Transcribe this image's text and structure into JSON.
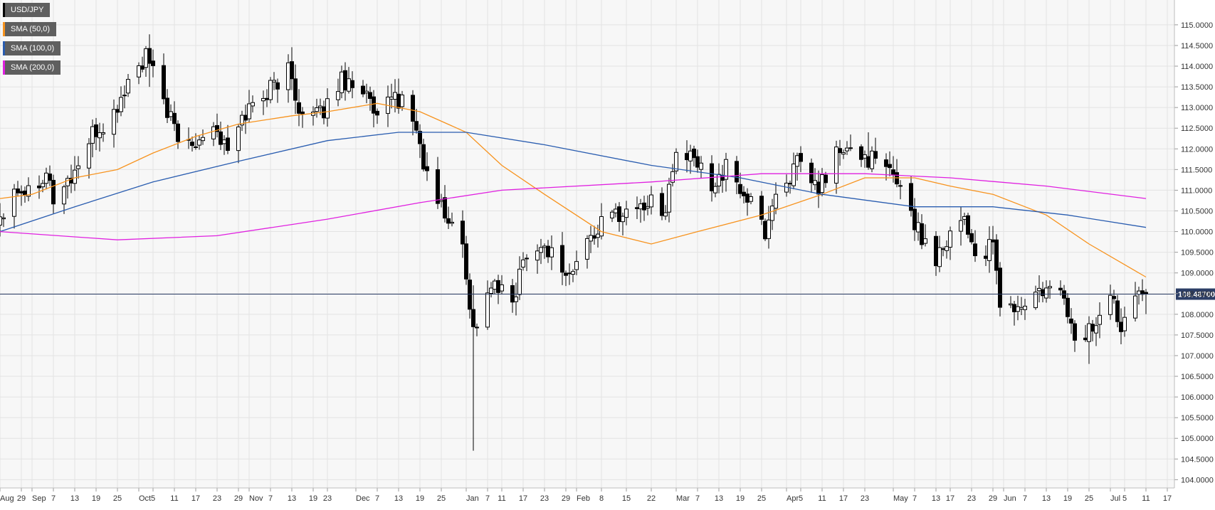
{
  "chart_data": {
    "type": "candlestick",
    "symbol": "USD/JPY",
    "ylim": [
      103.8,
      115.6
    ],
    "y_ticks": [
      "104.0000",
      "104.5000",
      "105.0000",
      "105.5000",
      "106.0000",
      "106.5000",
      "107.0000",
      "107.5000",
      "108.0000",
      "108.5000",
      "109.0000",
      "109.5000",
      "110.0000",
      "110.5000",
      "111.0000",
      "111.5000",
      "112.0000",
      "112.5000",
      "113.0000",
      "113.5000",
      "114.0000",
      "114.5000",
      "115.0000"
    ],
    "x_range": [
      "2018-08-23",
      "2019-07-19"
    ],
    "x_ticks": [
      {
        "date": "2018-08-23",
        "label": "Aug"
      },
      {
        "date": "2018-08-29",
        "label": "29"
      },
      {
        "date": "2018-09-01",
        "label": "Sep"
      },
      {
        "date": "2018-09-07",
        "label": "7"
      },
      {
        "date": "2018-09-13",
        "label": "13"
      },
      {
        "date": "2018-09-19",
        "label": "19"
      },
      {
        "date": "2018-09-25",
        "label": "25"
      },
      {
        "date": "2018-10-01",
        "label": "Oct"
      },
      {
        "date": "2018-10-05",
        "label": "5"
      },
      {
        "date": "2018-10-11",
        "label": "11"
      },
      {
        "date": "2018-10-17",
        "label": "17"
      },
      {
        "date": "2018-10-23",
        "label": "23"
      },
      {
        "date": "2018-10-29",
        "label": "29"
      },
      {
        "date": "2018-11-01",
        "label": "Nov"
      },
      {
        "date": "2018-11-07",
        "label": "7"
      },
      {
        "date": "2018-11-13",
        "label": "13"
      },
      {
        "date": "2018-11-19",
        "label": "19"
      },
      {
        "date": "2018-11-23",
        "label": "23"
      },
      {
        "date": "2018-12-01",
        "label": "Dec"
      },
      {
        "date": "2018-12-07",
        "label": "7"
      },
      {
        "date": "2018-12-13",
        "label": "13"
      },
      {
        "date": "2018-12-19",
        "label": "19"
      },
      {
        "date": "2018-12-25",
        "label": "25"
      },
      {
        "date": "2019-01-01",
        "label": "Jan"
      },
      {
        "date": "2019-01-07",
        "label": "7"
      },
      {
        "date": "2019-01-11",
        "label": "11"
      },
      {
        "date": "2019-01-17",
        "label": "17"
      },
      {
        "date": "2019-01-23",
        "label": "23"
      },
      {
        "date": "2019-01-29",
        "label": "29"
      },
      {
        "date": "2019-02-01",
        "label": "Feb"
      },
      {
        "date": "2019-02-08",
        "label": "8"
      },
      {
        "date": "2019-02-15",
        "label": "15"
      },
      {
        "date": "2019-02-22",
        "label": "22"
      },
      {
        "date": "2019-03-01",
        "label": "Mar"
      },
      {
        "date": "2019-03-07",
        "label": "7"
      },
      {
        "date": "2019-03-13",
        "label": "13"
      },
      {
        "date": "2019-03-19",
        "label": "19"
      },
      {
        "date": "2019-03-25",
        "label": "25"
      },
      {
        "date": "2019-04-01",
        "label": "Apr"
      },
      {
        "date": "2019-04-05",
        "label": "5"
      },
      {
        "date": "2019-04-11",
        "label": "11"
      },
      {
        "date": "2019-04-17",
        "label": "17"
      },
      {
        "date": "2019-04-23",
        "label": "23"
      },
      {
        "date": "2019-05-01",
        "label": "May"
      },
      {
        "date": "2019-05-07",
        "label": "7"
      },
      {
        "date": "2019-05-13",
        "label": "13"
      },
      {
        "date": "2019-05-17",
        "label": "17"
      },
      {
        "date": "2019-05-23",
        "label": "23"
      },
      {
        "date": "2019-05-29",
        "label": "29"
      },
      {
        "date": "2019-06-01",
        "label": "Jun"
      },
      {
        "date": "2019-06-07",
        "label": "7"
      },
      {
        "date": "2019-06-13",
        "label": "13"
      },
      {
        "date": "2019-06-19",
        "label": "19"
      },
      {
        "date": "2019-06-25",
        "label": "25"
      },
      {
        "date": "2019-07-01",
        "label": "Jul"
      },
      {
        "date": "2019-07-05",
        "label": "5"
      },
      {
        "date": "2019-07-11",
        "label": "11"
      },
      {
        "date": "2019-07-17",
        "label": "17"
      }
    ],
    "current_price": {
      "value": 108.487,
      "label": "108.48700"
    },
    "grid": true,
    "legend_position": "top-left",
    "legend": [
      {
        "label": "USD/JPY",
        "color": "#000000"
      },
      {
        "label": "SMA (50,0)",
        "color": "#f7931e"
      },
      {
        "label": "SMA (100,0)",
        "color": "#2a5db0"
      },
      {
        "label": "SMA (200,0)",
        "color": "#e020e0"
      }
    ],
    "price_path": [
      [
        "2018-08-23",
        110.4
      ],
      [
        "2018-08-27",
        111.1
      ],
      [
        "2018-08-31",
        111.0
      ],
      [
        "2018-09-05",
        111.5
      ],
      [
        "2018-09-07",
        110.8
      ],
      [
        "2018-09-12",
        111.3
      ],
      [
        "2018-09-18",
        112.3
      ],
      [
        "2018-09-24",
        112.8
      ],
      [
        "2018-09-28",
        113.6
      ],
      [
        "2018-10-03",
        114.2
      ],
      [
        "2018-10-08",
        113.2
      ],
      [
        "2018-10-12",
        112.2
      ],
      [
        "2018-10-16",
        112.2
      ],
      [
        "2018-10-22",
        112.6
      ],
      [
        "2018-10-26",
        111.9
      ],
      [
        "2018-10-31",
        112.9
      ],
      [
        "2018-11-06",
        113.4
      ],
      [
        "2018-11-12",
        113.9
      ],
      [
        "2018-11-16",
        112.8
      ],
      [
        "2018-11-21",
        112.8
      ],
      [
        "2018-11-27",
        113.7
      ],
      [
        "2018-12-03",
        113.5
      ],
      [
        "2018-12-07",
        112.6
      ],
      [
        "2018-12-12",
        113.3
      ],
      [
        "2018-12-17",
        112.8
      ],
      [
        "2018-12-21",
        111.3
      ],
      [
        "2018-12-26",
        110.4
      ],
      [
        "2018-12-31",
        109.7
      ],
      [
        "2019-01-03",
        107.6
      ],
      [
        "2019-01-08",
        108.7
      ],
      [
        "2019-01-14",
        108.3
      ],
      [
        "2019-01-18",
        109.6
      ],
      [
        "2019-01-24",
        109.6
      ],
      [
        "2019-01-30",
        108.9
      ],
      [
        "2019-02-05",
        109.9
      ],
      [
        "2019-02-11",
        110.4
      ],
      [
        "2019-02-15",
        110.5
      ],
      [
        "2019-02-21",
        110.7
      ],
      [
        "2019-02-26",
        110.6
      ],
      [
        "2019-03-01",
        111.9
      ],
      [
        "2019-03-06",
        111.7
      ],
      [
        "2019-03-11",
        111.2
      ],
      [
        "2019-03-15",
        111.5
      ],
      [
        "2019-03-21",
        110.8
      ],
      [
        "2019-03-26",
        110.0
      ],
      [
        "2019-03-29",
        110.9
      ],
      [
        "2019-04-04",
        111.6
      ],
      [
        "2019-04-10",
        111.0
      ],
      [
        "2019-04-15",
        111.9
      ],
      [
        "2019-04-19",
        111.9
      ],
      [
        "2019-04-24",
        111.8
      ],
      [
        "2019-04-30",
        111.4
      ],
      [
        "2019-05-03",
        111.2
      ],
      [
        "2019-05-08",
        110.0
      ],
      [
        "2019-05-13",
        109.4
      ],
      [
        "2019-05-17",
        110.0
      ],
      [
        "2019-05-21",
        110.4
      ],
      [
        "2019-05-24",
        109.4
      ],
      [
        "2019-05-29",
        109.6
      ],
      [
        "2019-05-31",
        108.3
      ],
      [
        "2019-06-05",
        108.1
      ],
      [
        "2019-06-11",
        108.5
      ],
      [
        "2019-06-18",
        108.5
      ],
      [
        "2019-06-21",
        107.3
      ],
      [
        "2019-06-26",
        107.7
      ],
      [
        "2019-07-01",
        108.4
      ],
      [
        "2019-07-04",
        107.8
      ],
      [
        "2019-07-09",
        108.8
      ],
      [
        "2019-07-11",
        108.487
      ]
    ],
    "key_levels": [
      {
        "date": "2018-10-04",
        "high": 114.55,
        "low": 113.5
      },
      {
        "date": "2018-11-12",
        "high": 114.2,
        "low": 113.5
      },
      {
        "date": "2018-12-13",
        "high": 113.7,
        "low": 113.2
      },
      {
        "date": "2019-01-03",
        "high": 108.7,
        "low": 104.7
      },
      {
        "date": "2019-03-05",
        "high": 112.1,
        "low": 111.5
      },
      {
        "date": "2019-04-24",
        "high": 112.4,
        "low": 111.8
      },
      {
        "date": "2019-06-25",
        "high": 107.5,
        "low": 106.8
      }
    ],
    "sma50": [
      [
        "2018-08-23",
        110.8
      ],
      [
        "2018-09-01",
        110.9
      ],
      [
        "2018-09-13",
        111.3
      ],
      [
        "2018-09-25",
        111.5
      ],
      [
        "2018-10-05",
        111.9
      ],
      [
        "2018-10-17",
        112.3
      ],
      [
        "2018-10-29",
        112.6
      ],
      [
        "2018-11-13",
        112.8
      ],
      [
        "2018-11-23",
        112.9
      ],
      [
        "2018-12-07",
        113.1
      ],
      [
        "2018-12-19",
        112.9
      ],
      [
        "2019-01-01",
        112.4
      ],
      [
        "2019-01-11",
        111.6
      ],
      [
        "2019-01-23",
        110.9
      ],
      [
        "2019-02-08",
        110.0
      ],
      [
        "2019-02-22",
        109.7
      ],
      [
        "2019-03-07",
        110.0
      ],
      [
        "2019-03-25",
        110.4
      ],
      [
        "2019-04-11",
        110.9
      ],
      [
        "2019-04-23",
        111.3
      ],
      [
        "2019-05-07",
        111.3
      ],
      [
        "2019-05-17",
        111.1
      ],
      [
        "2019-05-29",
        110.9
      ],
      [
        "2019-06-13",
        110.4
      ],
      [
        "2019-06-25",
        109.7
      ],
      [
        "2019-07-05",
        109.2
      ],
      [
        "2019-07-11",
        108.9
      ]
    ],
    "sma100": [
      [
        "2018-08-23",
        110.0
      ],
      [
        "2018-09-13",
        110.6
      ],
      [
        "2018-10-05",
        111.2
      ],
      [
        "2018-10-29",
        111.7
      ],
      [
        "2018-11-23",
        112.2
      ],
      [
        "2018-12-13",
        112.4
      ],
      [
        "2019-01-01",
        112.4
      ],
      [
        "2019-01-23",
        112.1
      ],
      [
        "2019-02-22",
        111.6
      ],
      [
        "2019-03-19",
        111.3
      ],
      [
        "2019-04-11",
        110.9
      ],
      [
        "2019-05-07",
        110.6
      ],
      [
        "2019-05-29",
        110.6
      ],
      [
        "2019-06-19",
        110.4
      ],
      [
        "2019-07-11",
        110.1
      ]
    ],
    "sma200": [
      [
        "2018-08-23",
        110.0
      ],
      [
        "2018-09-25",
        109.8
      ],
      [
        "2018-10-23",
        109.9
      ],
      [
        "2018-11-23",
        110.3
      ],
      [
        "2018-12-19",
        110.7
      ],
      [
        "2019-01-11",
        111.0
      ],
      [
        "2019-02-22",
        111.2
      ],
      [
        "2019-03-25",
        111.4
      ],
      [
        "2019-04-23",
        111.4
      ],
      [
        "2019-05-17",
        111.3
      ],
      [
        "2019-06-13",
        111.1
      ],
      [
        "2019-07-11",
        110.8
      ]
    ]
  }
}
